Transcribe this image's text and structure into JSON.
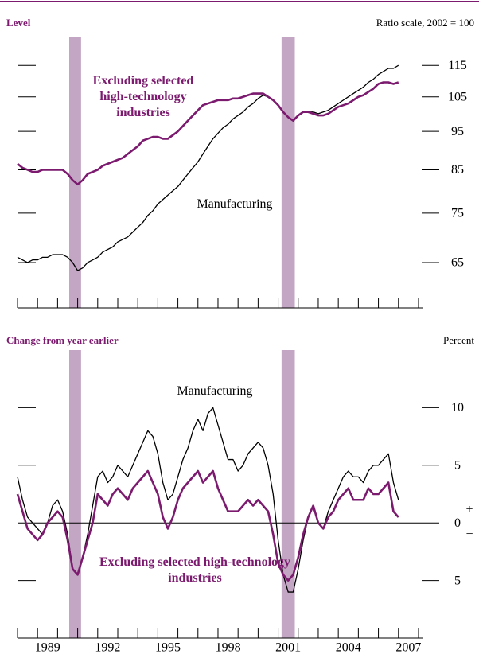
{
  "chart_data": [
    {
      "type": "line",
      "title": "Level",
      "subtitle": "Ratio scale, 2002 = 100",
      "log_scale": true,
      "xlim": [
        1988,
        2008.2
      ],
      "xticks": [
        1988,
        1989,
        1990,
        1991,
        1992,
        1993,
        1994,
        1995,
        1996,
        1997,
        1998,
        1999,
        2000,
        2001,
        2002,
        2003,
        2004,
        2005,
        2006,
        2007,
        2008
      ],
      "ylim": [
        57,
        125
      ],
      "yticks": [
        65,
        75,
        85,
        95,
        105,
        115
      ],
      "recessions": [
        [
          1990.58,
          1991.17
        ],
        [
          2001.17,
          2001.83
        ]
      ],
      "recession_color": "#c3a6c4",
      "x": [
        1988,
        1988.25,
        1988.5,
        1988.75,
        1989,
        1989.25,
        1989.5,
        1989.75,
        1990,
        1990.25,
        1990.5,
        1990.75,
        1991,
        1991.25,
        1991.5,
        1991.75,
        1992,
        1992.25,
        1992.5,
        1992.75,
        1993,
        1993.25,
        1993.5,
        1993.75,
        1994,
        1994.25,
        1994.5,
        1994.75,
        1995,
        1995.25,
        1995.5,
        1995.75,
        1996,
        1996.25,
        1996.5,
        1996.75,
        1997,
        1997.25,
        1997.5,
        1997.75,
        1998,
        1998.25,
        1998.5,
        1998.75,
        1999,
        1999.25,
        1999.5,
        1999.75,
        2000,
        2000.25,
        2000.5,
        2000.75,
        2001,
        2001.25,
        2001.5,
        2001.75,
        2002,
        2002.25,
        2002.5,
        2002.75,
        2003,
        2003.25,
        2003.5,
        2003.75,
        2004,
        2004.25,
        2004.5,
        2004.75,
        2005,
        2005.25,
        2005.5,
        2005.75,
        2006,
        2006.25,
        2006.5,
        2006.75,
        2007
      ],
      "series": [
        {
          "name": "Manufacturing",
          "color": "#000000",
          "width": 1.3,
          "values": [
            66,
            65.5,
            65,
            65.5,
            65.5,
            66,
            66,
            66.5,
            66.5,
            66.5,
            66,
            65,
            63.5,
            64,
            65,
            65.5,
            66,
            67,
            67.5,
            68,
            69,
            69.5,
            70,
            71,
            72,
            73,
            74.5,
            75.5,
            77,
            78,
            79,
            80,
            81,
            82.5,
            84,
            85.5,
            87,
            89,
            91,
            93,
            94.5,
            96,
            97,
            98.5,
            99.5,
            100.5,
            102,
            103,
            104.5,
            105.5,
            105,
            104,
            102.5,
            100.5,
            99,
            98,
            99.5,
            100.5,
            100.5,
            100.5,
            100,
            100.5,
            101,
            102,
            103,
            104,
            105,
            106,
            107,
            108,
            109.5,
            110.5,
            112,
            113,
            114,
            114,
            115
          ]
        },
        {
          "name": "Excluding selected high-technology industries",
          "color": "#7b1a6e",
          "width": 2.6,
          "values": [
            86.5,
            85.5,
            85,
            84.5,
            84.5,
            85,
            85,
            85,
            85,
            85,
            84,
            82.5,
            81.5,
            82.5,
            84,
            84.5,
            85,
            86,
            86.5,
            87,
            87.5,
            88,
            89,
            90,
            91,
            92.5,
            93,
            93.5,
            93.5,
            93,
            93,
            94,
            95,
            96.5,
            98,
            99.5,
            101,
            102.5,
            103,
            103.5,
            104,
            104,
            104,
            104.5,
            104.5,
            105,
            105.5,
            106,
            106,
            106,
            105,
            104,
            102.5,
            100.5,
            99,
            98,
            99.5,
            100.5,
            100.5,
            100,
            99.5,
            99.5,
            100,
            101,
            102,
            102.5,
            103,
            104,
            105,
            105.5,
            106.5,
            107.5,
            109,
            109.5,
            109.5,
            109,
            109.5
          ]
        }
      ]
    },
    {
      "type": "line",
      "title": "Change from year earlier",
      "subtitle": "Percent",
      "log_scale": false,
      "xlim": [
        1988,
        2008.2
      ],
      "xticks": [
        1988,
        1989,
        1990,
        1991,
        1992,
        1993,
        1994,
        1995,
        1996,
        1997,
        1998,
        1999,
        2000,
        2001,
        2002,
        2003,
        2004,
        2005,
        2006,
        2007,
        2008
      ],
      "xlabels": [
        1989,
        1992,
        1995,
        1998,
        2001,
        2004,
        2007
      ],
      "ylim": [
        -10,
        15
      ],
      "yticks": [
        {
          "value": -5,
          "label": "5"
        },
        0,
        5,
        10
      ],
      "zero_signs": [
        "+",
        "−"
      ],
      "recessions": [
        [
          1990.58,
          1991.17
        ],
        [
          2001.17,
          2001.83
        ]
      ],
      "recession_color": "#c3a6c4",
      "x": [
        1988,
        1988.25,
        1988.5,
        1988.75,
        1989,
        1989.25,
        1989.5,
        1989.75,
        1990,
        1990.25,
        1990.5,
        1990.75,
        1991,
        1991.25,
        1991.5,
        1991.75,
        1992,
        1992.25,
        1992.5,
        1992.75,
        1993,
        1993.25,
        1993.5,
        1993.75,
        1994,
        1994.25,
        1994.5,
        1994.75,
        1995,
        1995.25,
        1995.5,
        1995.75,
        1996,
        1996.25,
        1996.5,
        1996.75,
        1997,
        1997.25,
        1997.5,
        1997.75,
        1998,
        1998.25,
        1998.5,
        1998.75,
        1999,
        1999.25,
        1999.5,
        1999.75,
        2000,
        2000.25,
        2000.5,
        2000.75,
        2001,
        2001.25,
        2001.5,
        2001.75,
        2002,
        2002.25,
        2002.5,
        2002.75,
        2003,
        2003.25,
        2003.5,
        2003.75,
        2004,
        2004.25,
        2004.5,
        2004.75,
        2005,
        2005.25,
        2005.5,
        2005.75,
        2006,
        2006.25,
        2006.5,
        2006.75,
        2007
      ],
      "series": [
        {
          "name": "Manufacturing",
          "color": "#000000",
          "width": 1.3,
          "values": [
            4,
            2,
            0.5,
            0,
            -0.5,
            -1,
            0,
            1.5,
            2,
            1,
            -1,
            -4,
            -4.5,
            -3,
            -1,
            1.5,
            4,
            4.5,
            3.5,
            4,
            5,
            4.5,
            4,
            5,
            6,
            7,
            8,
            7.5,
            6,
            3.5,
            2,
            2.5,
            4,
            5.5,
            6.5,
            8,
            9,
            8,
            9.5,
            10,
            8.5,
            7,
            5.5,
            5.5,
            4.5,
            5,
            6,
            6.5,
            7,
            6.5,
            5,
            2.5,
            -1.5,
            -4.5,
            -6,
            -6,
            -4,
            -1.5,
            0.5,
            1.5,
            0,
            -0.5,
            1,
            2,
            3,
            4,
            4.5,
            4,
            4,
            3.5,
            4.5,
            5,
            5,
            5.5,
            6,
            3.5,
            2
          ]
        },
        {
          "name": "Excluding selected high-technology industries",
          "color": "#7b1a6e",
          "width": 2.6,
          "values": [
            2.5,
            1,
            -0.5,
            -1,
            -1.5,
            -1,
            0,
            0.5,
            1,
            0.5,
            -1.5,
            -4,
            -4.5,
            -3,
            -1.5,
            0,
            2.5,
            2,
            1.5,
            2.5,
            3,
            2.5,
            2,
            3,
            3.5,
            4,
            4.5,
            3.5,
            2.5,
            0.5,
            -0.5,
            0.5,
            2,
            3,
            3.5,
            4,
            4.5,
            3.5,
            4,
            4.5,
            3,
            2,
            1,
            1,
            1,
            1.5,
            2,
            1.5,
            2,
            1.5,
            1,
            -1,
            -3.5,
            -4.5,
            -5,
            -4.5,
            -3,
            -1,
            0.5,
            1.5,
            0,
            -0.5,
            0.5,
            1,
            2,
            2.5,
            3,
            2,
            2,
            2,
            3,
            2.5,
            2.5,
            3,
            3.5,
            1,
            0.5
          ]
        }
      ]
    }
  ]
}
